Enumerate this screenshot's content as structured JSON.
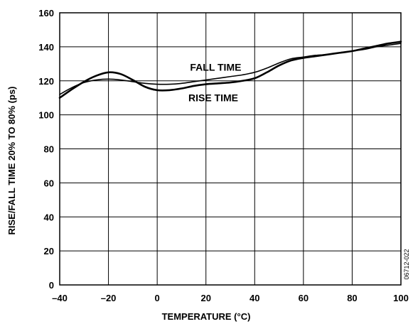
{
  "chart_data": {
    "type": "line",
    "title": "",
    "xlabel": "TEMPERATURE (°C)",
    "ylabel": "RISE/FALL TIME 20% TO 80% (ps)",
    "xlim": [
      -40,
      100
    ],
    "ylim": [
      0,
      160
    ],
    "xticks": [
      -40,
      -20,
      0,
      20,
      40,
      60,
      80,
      100
    ],
    "xtick_labels": [
      "–40",
      "–20",
      "0",
      "20",
      "40",
      "60",
      "80",
      "100"
    ],
    "yticks": [
      0,
      20,
      40,
      60,
      80,
      100,
      120,
      140,
      160
    ],
    "ytick_labels": [
      "0",
      "20",
      "40",
      "60",
      "80",
      "100",
      "120",
      "140",
      "160"
    ],
    "grid": true,
    "legend": "none",
    "figure_id": "06712-022",
    "series": [
      {
        "name": "FALL TIME",
        "color": "#000000",
        "x": [
          -40,
          -35,
          -30,
          -25,
          -20,
          -15,
          -10,
          -5,
          0,
          5,
          10,
          15,
          20,
          25,
          30,
          35,
          40,
          45,
          50,
          55,
          60,
          65,
          70,
          75,
          80,
          85,
          90,
          95,
          100
        ],
        "y": [
          112,
          116,
          119,
          120.5,
          121,
          120.5,
          119.5,
          118.5,
          118,
          118,
          118.5,
          119.5,
          120.5,
          121.5,
          122.5,
          123.5,
          125,
          127.5,
          130.5,
          133,
          134,
          135,
          135.5,
          136.5,
          137.5,
          138.5,
          140,
          141,
          142
        ]
      },
      {
        "name": "RISE TIME",
        "color": "#000000",
        "x": [
          -40,
          -35,
          -30,
          -25,
          -20,
          -15,
          -10,
          -5,
          0,
          5,
          10,
          15,
          20,
          25,
          30,
          35,
          40,
          45,
          50,
          55,
          60,
          65,
          70,
          75,
          80,
          85,
          90,
          95,
          100
        ],
        "y": [
          110,
          115,
          119.5,
          123,
          125,
          124,
          120.5,
          116.5,
          114.5,
          114.5,
          115.5,
          117,
          118,
          118.5,
          119,
          120,
          121.5,
          125,
          129,
          132,
          133.5,
          134.5,
          135.5,
          136.5,
          137.5,
          139,
          140.5,
          142,
          143
        ]
      }
    ],
    "annotations": [
      {
        "text": "FALL TIME",
        "x": 24,
        "y": 126
      },
      {
        "text": "RISE TIME",
        "x": 23,
        "y": 108
      }
    ]
  }
}
